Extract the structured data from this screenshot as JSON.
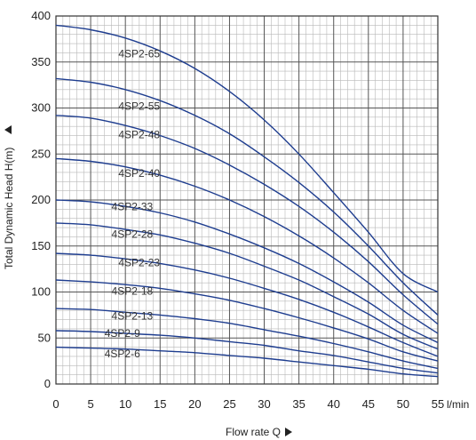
{
  "chart_data": {
    "type": "line",
    "xlabel": "Flow rate Q",
    "ylabel": "Total Dynamic Head H(m)",
    "x_unit": "l/min",
    "xlim": [
      0,
      55
    ],
    "ylim": [
      0,
      400
    ],
    "x_ticks": [
      "0",
      "5",
      "10",
      "15",
      "20",
      "25",
      "30",
      "35",
      "40",
      "45",
      "50",
      "55"
    ],
    "y_ticks": [
      "0",
      "50",
      "100",
      "150",
      "200",
      "250",
      "300",
      "350",
      "400"
    ],
    "grid": true,
    "line_color": "#1e3d8f",
    "series": [
      {
        "name": "4SP2-65",
        "label_at": [
          9,
          355
        ],
        "x": [
          0,
          5,
          10,
          15,
          20,
          25,
          30,
          35,
          40,
          45,
          50,
          55
        ],
        "y": [
          390,
          385,
          376,
          362,
          343,
          318,
          287,
          250,
          208,
          165,
          120,
          100
        ]
      },
      {
        "name": "4SP2-55",
        "label_at": [
          9,
          298
        ],
        "x": [
          0,
          5,
          10,
          15,
          20,
          25,
          30,
          35,
          40,
          45,
          50,
          55
        ],
        "y": [
          332,
          328,
          320,
          308,
          292,
          272,
          247,
          219,
          187,
          150,
          110,
          75
        ]
      },
      {
        "name": "4SP2-48",
        "label_at": [
          9,
          267
        ],
        "x": [
          0,
          5,
          10,
          15,
          20,
          25,
          30,
          35,
          40,
          45,
          50,
          55
        ],
        "y": [
          292,
          289,
          281,
          270,
          256,
          238,
          217,
          193,
          165,
          133,
          97,
          65
        ]
      },
      {
        "name": "4SP2-40",
        "label_at": [
          9,
          225
        ],
        "x": [
          0,
          5,
          10,
          15,
          20,
          25,
          30,
          35,
          40,
          45,
          50,
          55
        ],
        "y": [
          245,
          242,
          236,
          227,
          215,
          200,
          182,
          161,
          137,
          110,
          80,
          55
        ]
      },
      {
        "name": "4SP2-33",
        "label_at": [
          8,
          189
        ],
        "x": [
          0,
          5,
          10,
          15,
          20,
          25,
          30,
          35,
          40,
          45,
          50,
          55
        ],
        "y": [
          200,
          198,
          193,
          186,
          176,
          163,
          148,
          131,
          111,
          89,
          64,
          45
        ]
      },
      {
        "name": "4SP2-28",
        "label_at": [
          8,
          159
        ],
        "x": [
          0,
          5,
          10,
          15,
          20,
          25,
          30,
          35,
          40,
          45,
          50,
          55
        ],
        "y": [
          175,
          173,
          168,
          162,
          153,
          142,
          128,
          113,
          95,
          76,
          54,
          38
        ]
      },
      {
        "name": "4SP2-23",
        "label_at": [
          9,
          128
        ],
        "x": [
          0,
          5,
          10,
          15,
          20,
          25,
          30,
          35,
          40,
          45,
          50,
          55
        ],
        "y": [
          142,
          140,
          136,
          131,
          124,
          115,
          104,
          92,
          78,
          62,
          45,
          30
        ]
      },
      {
        "name": "4SP2-18",
        "label_at": [
          8,
          97
        ],
        "x": [
          0,
          5,
          10,
          15,
          20,
          25,
          30,
          35,
          40,
          45,
          50,
          55
        ],
        "y": [
          113,
          111,
          108,
          104,
          98,
          91,
          82,
          72,
          61,
          49,
          35,
          25
        ]
      },
      {
        "name": "4SP2-13",
        "label_at": [
          8,
          70
        ],
        "x": [
          0,
          5,
          10,
          15,
          20,
          25,
          30,
          35,
          40,
          45,
          50,
          55
        ],
        "y": [
          82,
          81,
          78,
          75,
          71,
          66,
          59,
          52,
          44,
          35,
          25,
          17
        ]
      },
      {
        "name": "4SP2-9",
        "label_at": [
          7,
          51
        ],
        "x": [
          0,
          5,
          10,
          15,
          20,
          25,
          30,
          35,
          40,
          45,
          50,
          55
        ],
        "y": [
          58,
          57,
          55,
          53,
          50,
          46,
          42,
          36,
          31,
          24,
          17,
          12
        ]
      },
      {
        "name": "4SP2-6",
        "label_at": [
          7,
          29
        ],
        "x": [
          0,
          5,
          10,
          15,
          20,
          25,
          30,
          35,
          40,
          45,
          50,
          55
        ],
        "y": [
          40,
          39,
          38,
          36,
          34,
          31,
          28,
          24,
          20,
          16,
          11,
          8
        ]
      }
    ]
  }
}
